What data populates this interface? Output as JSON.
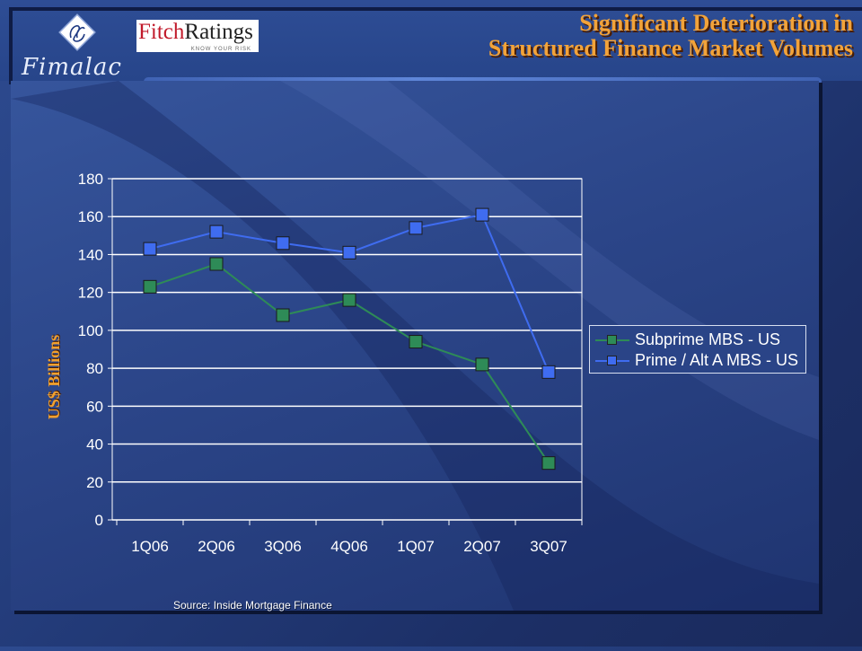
{
  "header": {
    "company": "Fimalac",
    "brand_part1": "Fitch",
    "brand_part2": "Ratings",
    "brand_tagline": "KNOW YOUR RISK",
    "title_line1": "Significant Deterioration in",
    "title_line2": "Structured Finance Market Volumes"
  },
  "colors": {
    "title": "#f2a33a",
    "subprime": "#2e8b57",
    "prime": "#3f6cf0",
    "background": "#243d7c"
  },
  "chart_data": {
    "type": "line",
    "title": "",
    "xlabel": "",
    "ylabel": "US$ Billions",
    "categories": [
      "1Q06",
      "2Q06",
      "3Q06",
      "4Q06",
      "1Q07",
      "2Q07",
      "3Q07"
    ],
    "ylim": [
      0,
      180
    ],
    "yticks": [
      0,
      20,
      40,
      60,
      80,
      100,
      120,
      140,
      160,
      180
    ],
    "grid": true,
    "legend_position": "right",
    "series": [
      {
        "name": "Subprime MBS - US",
        "values": [
          123,
          135,
          108,
          116,
          94,
          82,
          30
        ]
      },
      {
        "name": "Prime / Alt A MBS - US",
        "values": [
          143,
          152,
          146,
          141,
          154,
          161,
          78
        ]
      }
    ]
  },
  "footer": {
    "source": "Source: Inside Mortgage Finance"
  }
}
